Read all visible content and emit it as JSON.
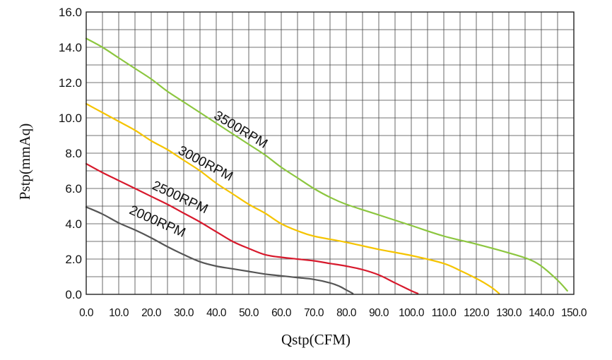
{
  "chart_data": {
    "type": "line",
    "xlabel": "Qstp(CFM)",
    "ylabel": "Pstp(mmAq)",
    "xlim": [
      0,
      150
    ],
    "ylim": [
      0,
      16
    ],
    "grid": true,
    "x_ticks": [
      "0.0",
      "10.0",
      "20.0",
      "30.0",
      "40.0",
      "50.0",
      "60.0",
      "70.0",
      "80.0",
      "90.0",
      "100.0",
      "110.0",
      "120.0",
      "130.0",
      "140.0",
      "150.0"
    ],
    "y_ticks": [
      "0.0",
      "2.0",
      "4.0",
      "6.0",
      "8.0",
      "10.0",
      "12.0",
      "14.0",
      "16.0"
    ],
    "series": [
      {
        "name": "3500RPM",
        "color": "#8cc63f",
        "x": [
          0,
          5,
          10,
          15,
          20,
          25,
          30,
          35,
          40,
          45,
          50,
          55,
          60,
          65,
          70,
          75,
          80,
          90,
          100,
          110,
          120,
          130,
          136,
          140,
          145,
          148
        ],
        "y": [
          14.5,
          14.0,
          13.4,
          12.8,
          12.2,
          11.5,
          10.9,
          10.3,
          9.7,
          9.1,
          8.5,
          7.9,
          7.2,
          6.6,
          6.0,
          5.5,
          5.1,
          4.5,
          3.9,
          3.3,
          2.85,
          2.35,
          2.0,
          1.6,
          0.8,
          0.2
        ]
      },
      {
        "name": "3000RPM",
        "color": "#f5c400",
        "x": [
          0,
          5,
          10,
          15,
          20,
          25,
          30,
          35,
          40,
          45,
          50,
          55,
          60,
          65,
          70,
          80,
          90,
          100,
          110,
          115,
          120,
          122,
          125,
          127
        ],
        "y": [
          10.8,
          10.3,
          9.8,
          9.3,
          8.7,
          8.2,
          7.6,
          7.0,
          6.3,
          5.7,
          5.1,
          4.6,
          4.0,
          3.6,
          3.3,
          2.95,
          2.55,
          2.2,
          1.75,
          1.35,
          0.9,
          0.7,
          0.35,
          0.05
        ]
      },
      {
        "name": "2500RPM",
        "color": "#d7192c",
        "x": [
          0,
          5,
          10,
          15,
          20,
          25,
          30,
          35,
          40,
          45,
          50,
          55,
          60,
          65,
          70,
          75,
          80,
          85,
          90,
          95,
          100,
          102
        ],
        "y": [
          7.4,
          6.9,
          6.45,
          6.0,
          5.55,
          5.1,
          4.6,
          4.1,
          3.55,
          3.0,
          2.6,
          2.25,
          2.1,
          2.0,
          1.9,
          1.75,
          1.6,
          1.4,
          1.1,
          0.65,
          0.2,
          0.05
        ]
      },
      {
        "name": "2000RPM",
        "color": "#555555",
        "x": [
          0,
          5,
          10,
          15,
          20,
          25,
          30,
          35,
          40,
          45,
          50,
          55,
          60,
          65,
          70,
          75,
          78,
          80,
          82
        ],
        "y": [
          4.95,
          4.55,
          4.05,
          3.65,
          3.2,
          2.7,
          2.25,
          1.85,
          1.6,
          1.45,
          1.3,
          1.15,
          1.05,
          0.95,
          0.85,
          0.65,
          0.45,
          0.25,
          0.05
        ]
      }
    ],
    "annotations": [
      {
        "text": "3500RPM",
        "series": "3500RPM"
      },
      {
        "text": "3000RPM",
        "series": "3000RPM"
      },
      {
        "text": "2500RPM",
        "series": "2500RPM"
      },
      {
        "text": "2000RPM",
        "series": "2000RPM"
      }
    ]
  }
}
